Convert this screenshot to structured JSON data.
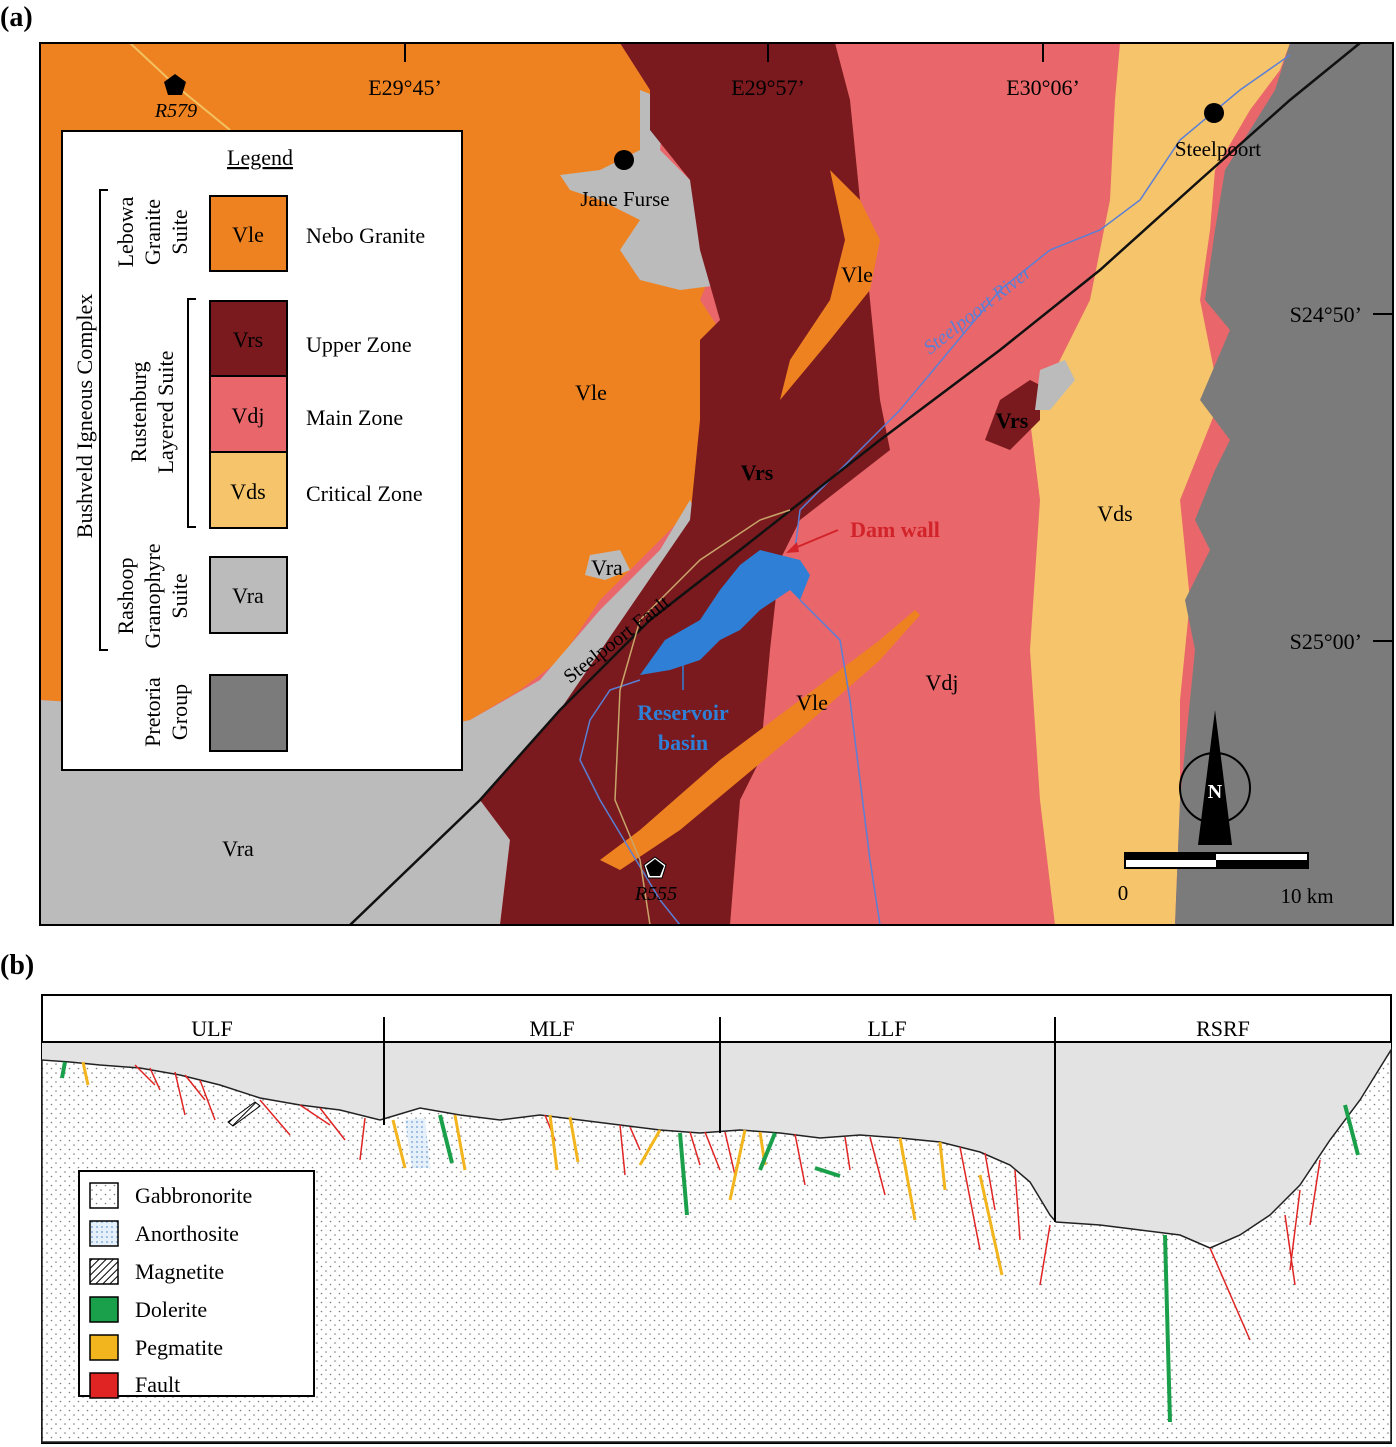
{
  "panels": {
    "a": "(a)",
    "b": "(b)"
  },
  "map": {
    "longitudes": [
      "E29°45’",
      "E29°57’",
      "E30°06’"
    ],
    "latitudes": [
      "S24°50’",
      "S25°00’"
    ],
    "towns": {
      "jane_furse": "Jane Furse",
      "steelpoort": "Steelpoort"
    },
    "roads": {
      "r579": "R579",
      "r555": "R555"
    },
    "units": {
      "vle_center": "Vle",
      "vle_upper": "Vle",
      "vle_lower": "Vle",
      "vrs_center": "Vrs",
      "vrs_east": "Vrs",
      "vdj": "Vdj",
      "vds": "Vds",
      "vra_small": "Vra",
      "vra_sw": "Vra"
    },
    "features": {
      "fault": "Steelpoort Fault",
      "river": "Steelpoort River",
      "dam_wall": "Dam wall",
      "reservoir_line1": "Reservoir",
      "reservoir_line2": "basin"
    },
    "north": "N",
    "scale": {
      "start": "0",
      "end": "10 km"
    },
    "legend": {
      "title": "Legend",
      "super_group": "Bushveld Igneous Complex",
      "suites": {
        "lebowa_1": "Lebowa",
        "lebowa_2": "Granite",
        "lebowa_3": "Suite",
        "rust_1": "Rustenburg",
        "rust_2": "Layered Suite",
        "rash_1": "Rashoop",
        "rash_2": "Granophyre",
        "rash_3": "Suite",
        "pret_1": "Pretoria",
        "pret_2": "Group"
      },
      "items": [
        {
          "code": "Vle",
          "name": "Nebo Granite",
          "color": "#ef8220"
        },
        {
          "code": "Vrs",
          "name": "Upper Zone",
          "color": "#7a1a1e"
        },
        {
          "code": "Vdj",
          "name": "Main Zone",
          "color": "#e9676a"
        },
        {
          "code": "Vds",
          "name": "Critical Zone",
          "color": "#f6c56b"
        },
        {
          "code": "Vra",
          "name": "",
          "color": "#bbbbbb"
        },
        {
          "code": "",
          "name": "",
          "color": "#7b7b7b"
        }
      ]
    }
  },
  "section": {
    "segments": [
      "ULF",
      "MLF",
      "LLF",
      "RSRF"
    ],
    "legend": [
      {
        "name": "Gabbronorite",
        "pattern": "dots"
      },
      {
        "name": "Anorthosite",
        "pattern": "light-blue-dots"
      },
      {
        "name": "Magnetite",
        "pattern": "hatch"
      },
      {
        "name": "Dolerite",
        "color": "#1aa04a"
      },
      {
        "name": "Pegmatite",
        "color": "#f2b51d"
      },
      {
        "name": "Fault",
        "color": "#e02424"
      }
    ]
  },
  "colors": {
    "vle": "#ef8220",
    "vrs": "#7a1a1e",
    "vdj": "#e9676a",
    "vds": "#f6c56b",
    "vra": "#bbbbbb",
    "pretoria": "#7b7b7b",
    "reservoir": "#2f7fd6",
    "river": "#5a7fd6",
    "dam_label": "#d2232a",
    "reservoir_label": "#2f7fd6",
    "dolerite": "#1aa04a",
    "pegmatite": "#f2b51d",
    "fault": "#e02424"
  }
}
